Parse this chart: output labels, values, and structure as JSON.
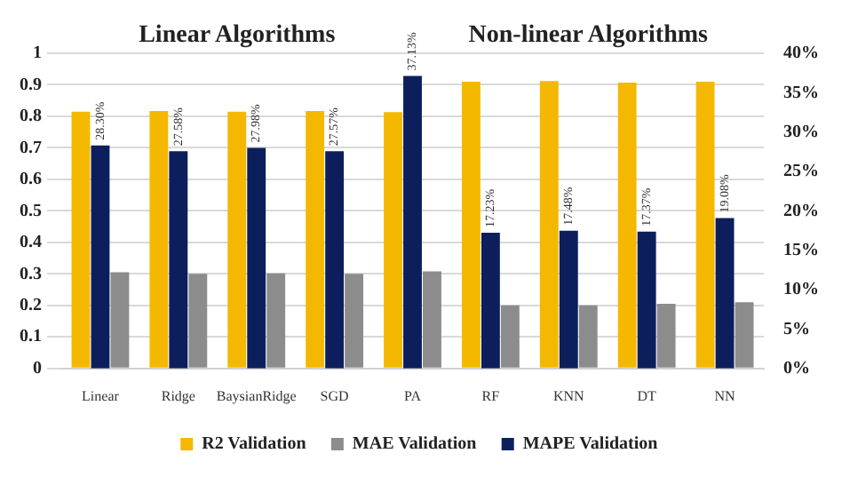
{
  "chart_data": {
    "type": "bar",
    "annotations": [
      "Linear Algorithms",
      "Non-linear Algorithms"
    ],
    "categories": [
      "Linear",
      "Ridge",
      "BaysianRidge",
      "SGD",
      "PA",
      "RF",
      "KNN",
      "DT",
      "NN"
    ],
    "series": [
      {
        "name": "R2 Validation",
        "color": "#f5b800",
        "values": [
          0.815,
          0.817,
          0.815,
          0.817,
          0.813,
          0.91,
          0.912,
          0.907,
          0.91
        ]
      },
      {
        "name": "MAPE Validation",
        "color": "#0c1f5c",
        "axis": "y2",
        "values": [
          28.3,
          27.58,
          27.98,
          27.57,
          37.13,
          17.23,
          17.48,
          17.37,
          19.08
        ],
        "value_labels": [
          "28.30%",
          "27.58%",
          "27.98%",
          "27.57%",
          "37.13%",
          "17.23%",
          "17.48%",
          "17.37%",
          "19.08%"
        ]
      },
      {
        "name": "MAE Validation",
        "color": "#8c8c8c",
        "values": [
          0.305,
          0.3,
          0.302,
          0.3,
          0.308,
          0.2,
          0.2,
          0.205,
          0.21
        ]
      }
    ],
    "ylim": [
      0,
      1
    ],
    "yticks": [
      0,
      0.1,
      0.2,
      0.3,
      0.4,
      0.5,
      0.6,
      0.7,
      0.8,
      0.9,
      1
    ],
    "y2lim": [
      0,
      40
    ],
    "y2ticks": [
      {
        "value": 0,
        "label": "0%"
      },
      {
        "value": 5,
        "label": "5%"
      },
      {
        "value": 10,
        "label": "10%"
      },
      {
        "value": 15,
        "label": "15%"
      },
      {
        "value": 20,
        "label": "20%"
      },
      {
        "value": 25,
        "label": "25%"
      },
      {
        "value": 30,
        "label": "30%"
      },
      {
        "value": 35,
        "label": "35%"
      },
      {
        "value": 40,
        "label": "40%"
      }
    ],
    "grid": "y",
    "legend": "bottom"
  }
}
